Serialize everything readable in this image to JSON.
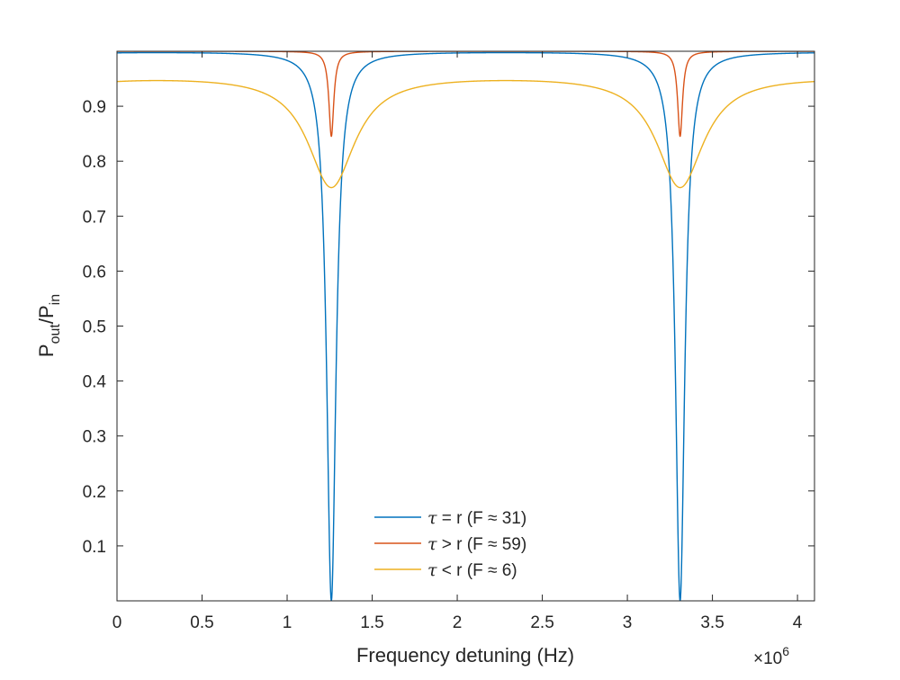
{
  "chart_data": {
    "type": "line",
    "title": "",
    "xlabel": "Frequency detuning (Hz)",
    "ylabel": {
      "base1": "P",
      "sub1": "out",
      "sep": "/P",
      "sub2": "in"
    },
    "x_multiplier": {
      "prefix": "×10",
      "exponent": "6"
    },
    "xlim": [
      0,
      4.1
    ],
    "ylim": [
      0,
      1
    ],
    "x_scale": 1000000,
    "x_ticks": [
      0,
      0.5,
      1,
      1.5,
      2,
      2.5,
      3,
      3.5,
      4
    ],
    "x_tick_labels": [
      "0",
      "0.5",
      "1",
      "1.5",
      "2",
      "2.5",
      "3",
      "3.5",
      "4"
    ],
    "y_ticks": [
      0.1,
      0.2,
      0.3,
      0.4,
      0.5,
      0.6,
      0.7,
      0.8,
      0.9
    ],
    "y_tick_labels": [
      "0.1",
      "0.2",
      "0.3",
      "0.4",
      "0.5",
      "0.6",
      "0.7",
      "0.8",
      "0.9"
    ],
    "grid": false,
    "legend_position": "bottom-center",
    "resonances_x": [
      1.26,
      3.31
    ],
    "free_spectral_range": 2.05,
    "series": [
      {
        "name": "τ = r (F ≈ 31)",
        "legend_symbol": "τ",
        "legend_text": " = r (F ≈ 31)",
        "color": "#0072BD",
        "finesse": 31,
        "max": 1.0,
        "min": 0.0
      },
      {
        "name": "τ > r (F ≈ 59)",
        "legend_symbol": "τ",
        "legend_text": " > r (F ≈ 59)",
        "color": "#D95319",
        "finesse": 59,
        "max": 1.0,
        "min": 0.845
      },
      {
        "name": "τ < r (F ≈ 6)",
        "legend_symbol": "τ",
        "legend_text": " < r (F ≈ 6)",
        "color": "#EDB120",
        "finesse": 6,
        "max": 0.96,
        "min": 0.752
      }
    ]
  }
}
